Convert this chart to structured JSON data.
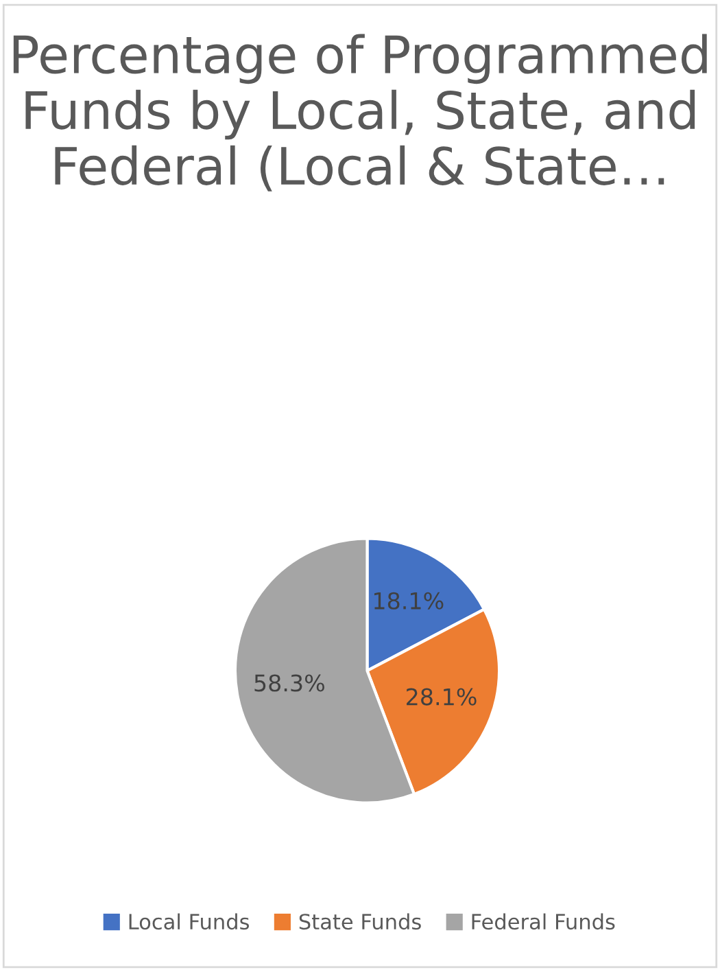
{
  "chart_data": {
    "type": "pie",
    "title": "Percentage of Programmed Funds by Local, State, and Federal (Local & State…",
    "categories": [
      "Local Funds",
      "State Funds",
      "Federal Funds"
    ],
    "values": [
      18.1,
      28.1,
      58.3
    ],
    "colors": [
      "#4472c4",
      "#ed7d31",
      "#a5a5a5"
    ],
    "value_labels": [
      "18.1%",
      "28.1%",
      "58.3%"
    ],
    "legend": "bottom"
  }
}
